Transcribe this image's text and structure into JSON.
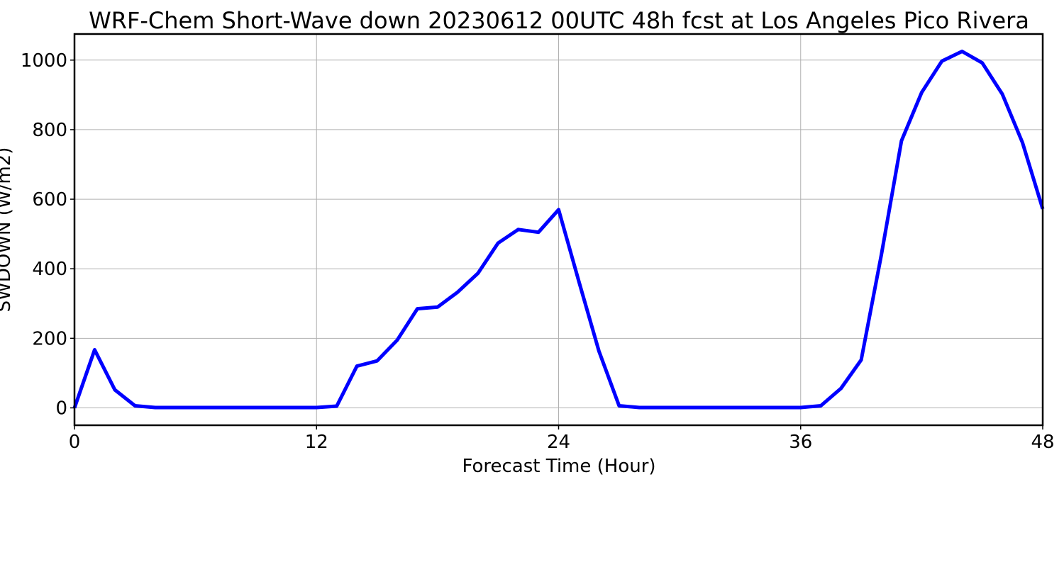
{
  "chart_data": {
    "type": "line",
    "title": "WRF-Chem Short-Wave down  20230612 00UTC 48h fcst at Los Angeles Pico Rivera",
    "xlabel": "Forecast Time (Hour)",
    "ylabel": "SWDOWN  (W/m2)",
    "xlim": [
      0,
      48
    ],
    "ylim": [
      -50,
      1075
    ],
    "xticks": [
      0,
      12,
      24,
      36,
      48
    ],
    "yticks": [
      0,
      200,
      400,
      600,
      800,
      1000
    ],
    "grid": true,
    "series": [
      {
        "color": "#0000ff",
        "x": [
          0,
          1,
          2,
          3,
          4,
          5,
          6,
          7,
          8,
          9,
          10,
          11,
          12,
          13,
          14,
          15,
          16,
          17,
          18,
          19,
          20,
          21,
          22,
          23,
          24,
          25,
          26,
          27,
          28,
          29,
          30,
          31,
          32,
          33,
          34,
          35,
          36,
          37,
          38,
          39,
          40,
          41,
          42,
          43,
          44,
          45,
          46,
          47,
          48
        ],
        "values": [
          0,
          167,
          52,
          6,
          1,
          1,
          1,
          1,
          1,
          1,
          1,
          1,
          1,
          5,
          120,
          135,
          195,
          285,
          290,
          333,
          387,
          474,
          513,
          505,
          570,
          365,
          163,
          6,
          1,
          1,
          1,
          1,
          1,
          1,
          1,
          1,
          1,
          6,
          56,
          138,
          440,
          768,
          907,
          997,
          1025,
          992,
          902,
          762,
          572
        ]
      }
    ]
  }
}
